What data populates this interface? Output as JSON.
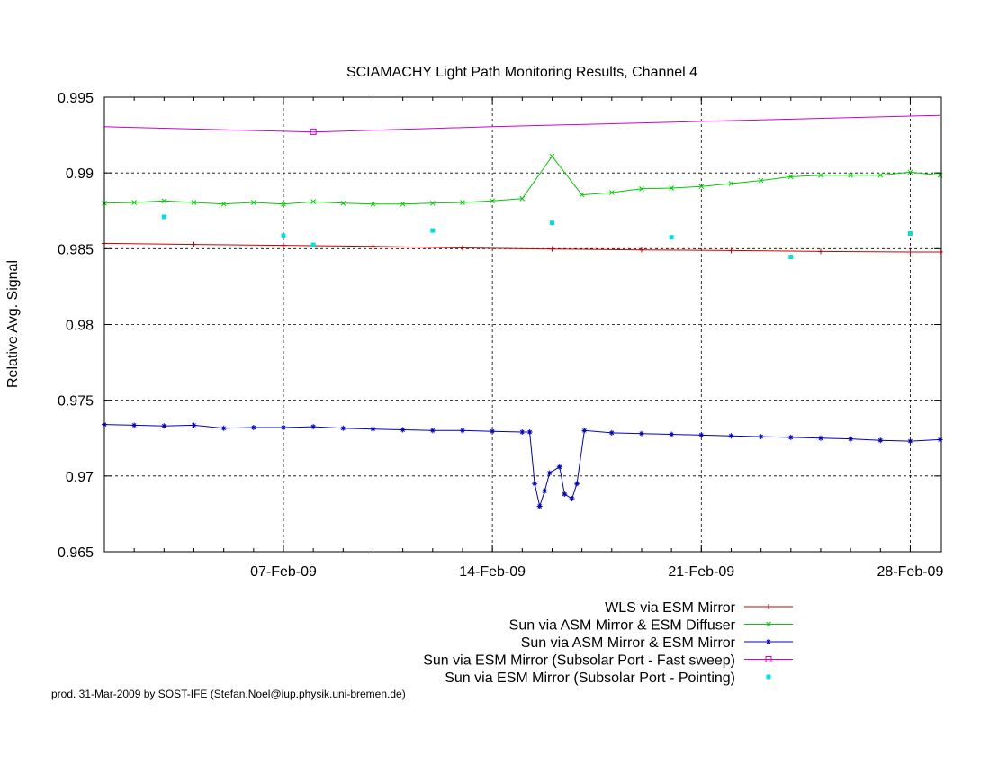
{
  "footer": "prod. 31-Mar-2009 by SOST-IFE (Stefan.Noel@iup.physik.uni-bremen.de)",
  "chart_data": {
    "type": "line",
    "title": "SCIAMACHY Light Path Monitoring Results, Channel 4",
    "xlabel": "",
    "ylabel": "Relative Avg. Signal",
    "xlim": [
      "2009-02-01 00:00",
      "2009-03-01 01:00"
    ],
    "ylim": [
      0.965,
      0.995
    ],
    "grid": true,
    "legend_position": "bottom-right",
    "x_ticks": [
      {
        "x": "2009-02-07",
        "label": "07-Feb-09"
      },
      {
        "x": "2009-02-14",
        "label": "14-Feb-09"
      },
      {
        "x": "2009-02-21",
        "label": "21-Feb-09"
      },
      {
        "x": "2009-02-28",
        "label": "28-Feb-09"
      }
    ],
    "y_ticks": [
      {
        "y": 0.965,
        "label": "0.965"
      },
      {
        "y": 0.97,
        "label": "0.97"
      },
      {
        "y": 0.975,
        "label": "0.975"
      },
      {
        "y": 0.98,
        "label": "0.98"
      },
      {
        "y": 0.985,
        "label": "0.985"
      },
      {
        "y": 0.99,
        "label": "0.99"
      },
      {
        "y": 0.995,
        "label": "0.995"
      }
    ],
    "series": [
      {
        "name": "WLS via ESM Mirror",
        "color": "#d00000",
        "marker": "plus",
        "points": [
          [
            "2009-02-01",
            0.98535
          ],
          [
            "2009-02-04",
            0.98528
          ],
          [
            "2009-02-07",
            0.98522
          ],
          [
            "2009-02-10",
            0.98515
          ],
          [
            "2009-02-13",
            0.98505
          ],
          [
            "2009-02-16",
            0.98498
          ],
          [
            "2009-02-19",
            0.98492
          ],
          [
            "2009-02-22",
            0.98488
          ],
          [
            "2009-02-25",
            0.98482
          ],
          [
            "2009-02-28",
            0.98478
          ],
          [
            "2009-03-01",
            0.98478
          ]
        ]
      },
      {
        "name": "Sun via ASM Mirror & ESM Diffuser",
        "color": "#00cc00",
        "marker": "cross",
        "points": [
          [
            "2009-02-01",
            0.988
          ],
          [
            "2009-02-02",
            0.98805
          ],
          [
            "2009-02-03",
            0.98815
          ],
          [
            "2009-02-04",
            0.98805
          ],
          [
            "2009-02-05",
            0.98795
          ],
          [
            "2009-02-06",
            0.98805
          ],
          [
            "2009-02-07",
            0.98795
          ],
          [
            "2009-02-08",
            0.9881
          ],
          [
            "2009-02-09",
            0.988
          ],
          [
            "2009-02-10",
            0.98795
          ],
          [
            "2009-02-11",
            0.98795
          ],
          [
            "2009-02-12",
            0.988
          ],
          [
            "2009-02-13",
            0.98805
          ],
          [
            "2009-02-14",
            0.98815
          ],
          [
            "2009-02-15",
            0.9883
          ],
          [
            "2009-02-16",
            0.9911
          ],
          [
            "2009-02-17",
            0.98855
          ],
          [
            "2009-02-18",
            0.9887
          ],
          [
            "2009-02-19",
            0.98895
          ],
          [
            "2009-02-20",
            0.989
          ],
          [
            "2009-02-21",
            0.9891
          ],
          [
            "2009-02-22",
            0.9893
          ],
          [
            "2009-02-23",
            0.9895
          ],
          [
            "2009-02-24",
            0.98975
          ],
          [
            "2009-02-25",
            0.98985
          ],
          [
            "2009-02-26",
            0.98985
          ],
          [
            "2009-02-27",
            0.98985
          ],
          [
            "2009-02-28",
            0.99005
          ],
          [
            "2009-03-01",
            0.98985
          ]
        ]
      },
      {
        "name": "Sun via ASM Mirror & ESM Mirror",
        "color": "#0000c8",
        "marker": "star",
        "points": [
          [
            "2009-02-01",
            0.9734
          ],
          [
            "2009-02-02",
            0.97335
          ],
          [
            "2009-02-03",
            0.9733
          ],
          [
            "2009-02-04",
            0.97335
          ],
          [
            "2009-02-05",
            0.97315
          ],
          [
            "2009-02-06",
            0.9732
          ],
          [
            "2009-02-07",
            0.9732
          ],
          [
            "2009-02-08",
            0.97325
          ],
          [
            "2009-02-09",
            0.97315
          ],
          [
            "2009-02-10",
            0.9731
          ],
          [
            "2009-02-11",
            0.97305
          ],
          [
            "2009-02-12",
            0.973
          ],
          [
            "2009-02-13",
            0.973
          ],
          [
            "2009-02-14",
            0.97295
          ],
          [
            "2009-02-15",
            0.9729
          ],
          [
            "2009-02-15 06:00",
            0.9729
          ],
          [
            "2009-02-15 10:00",
            0.9695
          ],
          [
            "2009-02-15 14:00",
            0.968
          ],
          [
            "2009-02-15 18:00",
            0.969
          ],
          [
            "2009-02-15 22:00",
            0.9702
          ],
          [
            "2009-02-16 06:00",
            0.9706
          ],
          [
            "2009-02-16 10:00",
            0.9688
          ],
          [
            "2009-02-16 16:00",
            0.9685
          ],
          [
            "2009-02-16 20:00",
            0.9695
          ],
          [
            "2009-02-17 02:00",
            0.973
          ],
          [
            "2009-02-18",
            0.97285
          ],
          [
            "2009-02-19",
            0.9728
          ],
          [
            "2009-02-20",
            0.97275
          ],
          [
            "2009-02-21",
            0.9727
          ],
          [
            "2009-02-22",
            0.97265
          ],
          [
            "2009-02-23",
            0.9726
          ],
          [
            "2009-02-24",
            0.97255
          ],
          [
            "2009-02-25",
            0.9725
          ],
          [
            "2009-02-26",
            0.97245
          ],
          [
            "2009-02-27",
            0.97235
          ],
          [
            "2009-02-28",
            0.9723
          ],
          [
            "2009-03-01",
            0.9724
          ]
        ]
      },
      {
        "name": "Sun via ESM Mirror (Subsolar Port - Fast sweep)",
        "color": "#cc00cc",
        "marker": "open-square",
        "points": [
          [
            "2009-02-01",
            0.99305
          ],
          [
            "2009-02-07",
            0.99275
          ],
          [
            "2009-02-08",
            0.9927
          ],
          [
            "2009-02-14",
            0.99305
          ],
          [
            "2009-02-21",
            0.9934
          ],
          [
            "2009-03-01",
            0.9938
          ]
        ],
        "marked_points": [
          [
            "2009-02-08",
            0.99272
          ]
        ]
      },
      {
        "name": "Sun via ESM Mirror (Subsolar Port - Pointing)",
        "color": "#00e0e0",
        "marker": "filled-square",
        "points": [
          [
            "2009-02-03",
            0.9871
          ],
          [
            "2009-02-07",
            0.98585
          ],
          [
            "2009-02-08",
            0.98525
          ],
          [
            "2009-02-12",
            0.9862
          ],
          [
            "2009-02-16",
            0.9867
          ],
          [
            "2009-02-20",
            0.98575
          ],
          [
            "2009-02-24",
            0.98445
          ],
          [
            "2009-02-28",
            0.986
          ]
        ]
      }
    ]
  }
}
